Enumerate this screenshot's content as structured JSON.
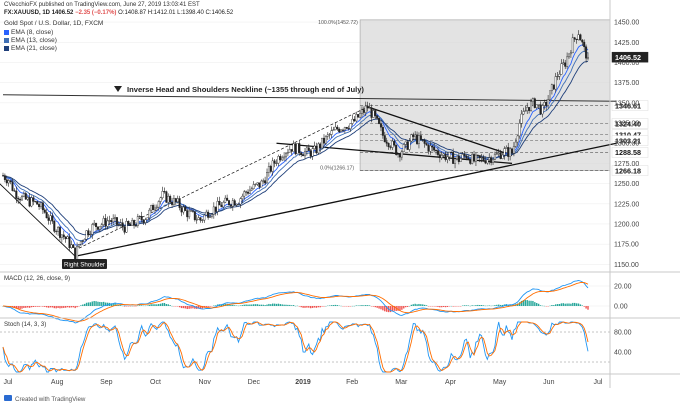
{
  "header": {
    "publisher_line": "CVecchioFX published on TradingView.com, June 27, 2019 13:03:41 EST",
    "symbol": "FX:XAUUSD, 1D",
    "price": "1406.52",
    "change": "−2.35 (−0.17%)",
    "ohlc": "O:1408.87 H:1412.01 L:1398.40 C:1406.52"
  },
  "legend": [
    {
      "label": "Gold Spot / U.S. Dollar, 1D, FXCM"
    },
    {
      "label": "EMA (8, close)",
      "color": "#2962ff"
    },
    {
      "label": "EMA (13, close)",
      "color": "#3f6fb5"
    },
    {
      "label": "EMA (21, close)",
      "color": "#1f3f7a"
    }
  ],
  "annotations": {
    "neckline_text": "Inverse Head and Shoulders Neckline (~1355 through end of July)",
    "right_shoulder": "Right Shoulder",
    "fib_top": "100.0%(1452.72)",
    "fib_bottom": "0.0%(1266.17)"
  },
  "footer": {
    "created_with": "Created with TradingView"
  },
  "panes": {
    "macd_title": "MACD (12, 26, close, 9)",
    "stoch_title": "Stoch (14, 3, 3)"
  },
  "chart_data": {
    "type": "candlestick",
    "title": "Gold Spot / U.S. Dollar, 1D, FXCM",
    "x_labels": [
      "Jul",
      "Aug",
      "Sep",
      "Oct",
      "Nov",
      "Dec",
      "2019",
      "Feb",
      "Mar",
      "Apr",
      "May",
      "Jun",
      "Jul"
    ],
    "y_ticks": [
      1150.0,
      1175.0,
      1200.0,
      1225.0,
      1250.0,
      1275.0,
      1300.0,
      1325.0,
      1350.0,
      1375.0,
      1400.0,
      1425.0,
      1450.0
    ],
    "ylim": [
      1143,
      1460
    ],
    "level_labels": [
      {
        "value": 1406.52,
        "label": "1406.52",
        "style": "dark"
      },
      {
        "value": 1346.61,
        "label": "1346.61"
      },
      {
        "value": 1324.4,
        "label": "1324.40"
      },
      {
        "value": 1310.47,
        "label": "1310.47"
      },
      {
        "value": 1303.21,
        "label": "1303.21"
      },
      {
        "value": 1288.58,
        "label": "1288.58"
      },
      {
        "value": 1266.18,
        "label": "1266.18"
      }
    ],
    "price_path": [
      [
        0,
        1260
      ],
      [
        3,
        1255
      ],
      [
        6,
        1240
      ],
      [
        10,
        1232
      ],
      [
        14,
        1228
      ],
      [
        18,
        1225
      ],
      [
        22,
        1215
      ],
      [
        26,
        1200
      ],
      [
        30,
        1190
      ],
      [
        33,
        1182
      ],
      [
        36,
        1172
      ],
      [
        38,
        1160
      ],
      [
        40,
        1175
      ],
      [
        44,
        1190
      ],
      [
        48,
        1198
      ],
      [
        52,
        1200
      ],
      [
        56,
        1205
      ],
      [
        60,
        1200
      ],
      [
        64,
        1196
      ],
      [
        68,
        1198
      ],
      [
        72,
        1205
      ],
      [
        76,
        1210
      ],
      [
        80,
        1225
      ],
      [
        84,
        1235
      ],
      [
        88,
        1230
      ],
      [
        92,
        1225
      ],
      [
        96,
        1215
      ],
      [
        100,
        1210
      ],
      [
        104,
        1205
      ],
      [
        108,
        1215
      ],
      [
        112,
        1220
      ],
      [
        116,
        1225
      ],
      [
        120,
        1228
      ],
      [
        124,
        1230
      ],
      [
        128,
        1240
      ],
      [
        132,
        1245
      ],
      [
        136,
        1250
      ],
      [
        140,
        1265
      ],
      [
        144,
        1280
      ],
      [
        148,
        1290
      ],
      [
        152,
        1295
      ],
      [
        156,
        1292
      ],
      [
        160,
        1288
      ],
      [
        164,
        1290
      ],
      [
        168,
        1300
      ],
      [
        172,
        1310
      ],
      [
        176,
        1318
      ],
      [
        180,
        1322
      ],
      [
        184,
        1325
      ],
      [
        188,
        1335
      ],
      [
        192,
        1345
      ],
      [
        196,
        1330
      ],
      [
        200,
        1310
      ],
      [
        204,
        1300
      ],
      [
        208,
        1288
      ],
      [
        212,
        1295
      ],
      [
        216,
        1308
      ],
      [
        220,
        1302
      ],
      [
        224,
        1295
      ],
      [
        228,
        1290
      ],
      [
        232,
        1285
      ],
      [
        236,
        1282
      ],
      [
        240,
        1280
      ],
      [
        244,
        1285
      ],
      [
        248,
        1278
      ],
      [
        252,
        1280
      ],
      [
        256,
        1282
      ],
      [
        260,
        1285
      ],
      [
        264,
        1290
      ],
      [
        268,
        1288
      ],
      [
        272,
        1325
      ],
      [
        276,
        1345
      ],
      [
        280,
        1350
      ],
      [
        284,
        1340
      ],
      [
        288,
        1360
      ],
      [
        292,
        1385
      ],
      [
        296,
        1400
      ],
      [
        300,
        1425
      ],
      [
        303,
        1438
      ],
      [
        306,
        1415
      ],
      [
        308,
        1406.52
      ]
    ],
    "macd_range": [
      -10,
      30
    ],
    "macd_ticks": [
      20.0,
      0.0
    ],
    "stoch_range": [
      0,
      100
    ],
    "stoch_ticks": [
      80.0,
      40.0
    ]
  }
}
